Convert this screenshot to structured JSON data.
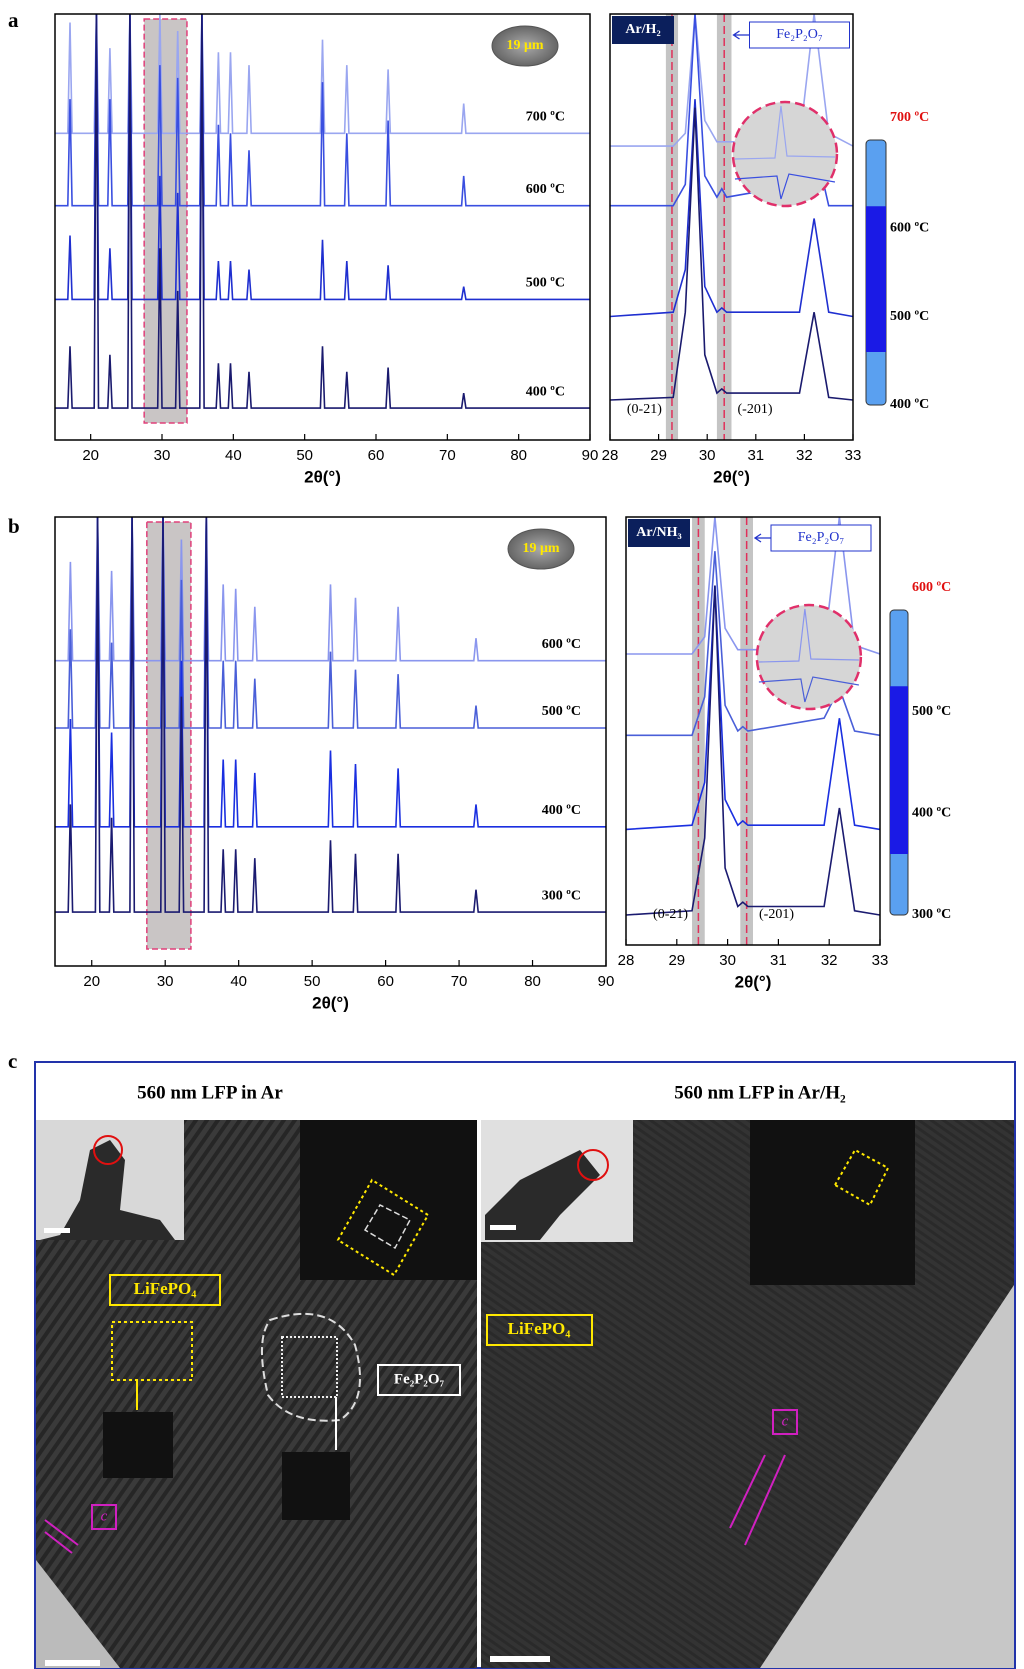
{
  "panel_labels": [
    "a",
    "b",
    "c"
  ],
  "chart_data": [
    {
      "type": "line",
      "x_label": "2θ(°)",
      "inset_label": "19 μm",
      "xlim": [
        15,
        90
      ],
      "xticks": [
        20,
        30,
        40,
        50,
        60,
        70,
        80,
        90
      ],
      "ylim": [
        0,
        100
      ],
      "shaded_range": [
        27.5,
        33.5
      ],
      "x": [
        15,
        16.8,
        17.1,
        17.4,
        20.5,
        20.8,
        21.1,
        22.4,
        22.7,
        23.0,
        25.2,
        25.5,
        25.8,
        29.4,
        29.7,
        30.0,
        31.9,
        32.2,
        32.5,
        35.3,
        35.6,
        35.9,
        37.6,
        37.9,
        38.2,
        39.3,
        39.6,
        39.9,
        41.9,
        42.2,
        42.5,
        52.2,
        52.5,
        52.8,
        55.6,
        55.9,
        56.2,
        61.4,
        61.7,
        62.0,
        72.0,
        72.3,
        72.6,
        90
      ],
      "series": [
        {
          "name": "700 ºC",
          "color": "#9aa6f0",
          "values": [
            72,
            72,
            98,
            72,
            72,
            100,
            72,
            72,
            92,
            72,
            72,
            100,
            72,
            72,
            100,
            72,
            72,
            96,
            72,
            72,
            100,
            72,
            72,
            91,
            72,
            72,
            91,
            72,
            72,
            88,
            72,
            72,
            94,
            72,
            72,
            88,
            72,
            72,
            87,
            72,
            72,
            79,
            72,
            72
          ]
        },
        {
          "name": "600 ºC",
          "color": "#3a4fe0",
          "values": [
            55,
            55,
            80,
            55,
            55,
            100,
            55,
            55,
            80,
            55,
            55,
            100,
            55,
            55,
            88,
            55,
            55,
            85,
            55,
            55,
            100,
            55,
            55,
            74,
            55,
            55,
            72,
            55,
            55,
            68,
            55,
            55,
            84,
            55,
            55,
            72,
            55,
            55,
            75,
            55,
            55,
            62,
            55,
            55
          ]
        },
        {
          "name": "500 ºC",
          "color": "#1f2fd0",
          "values": [
            33,
            33,
            48,
            33,
            33,
            100,
            33,
            33,
            45,
            33,
            33,
            100,
            33,
            33,
            62,
            33,
            33,
            58,
            33,
            33,
            100,
            33,
            33,
            42,
            33,
            33,
            42,
            33,
            33,
            40,
            33,
            33,
            47,
            33,
            33,
            42,
            33,
            33,
            41,
            33,
            33,
            36,
            33,
            33
          ]
        },
        {
          "name": "400 ºC",
          "color": "#1a1a6e",
          "values": [
            7.5,
            7.5,
            22,
            7.5,
            7.5,
            100,
            7.5,
            7.5,
            20,
            7.5,
            7.5,
            100,
            7.5,
            7.5,
            45,
            7.5,
            7.5,
            35,
            7.5,
            7.5,
            100,
            7.5,
            7.5,
            18,
            7.5,
            7.5,
            18,
            7.5,
            7.5,
            16,
            7.5,
            7.5,
            22,
            7.5,
            7.5,
            16,
            7.5,
            7.5,
            17,
            7.5,
            7.5,
            11,
            7.5,
            7.5
          ]
        }
      ]
    },
    {
      "type": "line",
      "x_label": "2θ(°)",
      "gas_label": "Ar/H₂",
      "phase_label": "Fe₂P₂O₇",
      "peak_labels": [
        "(0-21)",
        "(-201)"
      ],
      "xlim": [
        28,
        33
      ],
      "xticks": [
        28,
        29,
        30,
        31,
        32,
        33
      ],
      "ylim": [
        0,
        100
      ],
      "bands": [
        [
          29.15,
          29.4
        ],
        [
          30.2,
          30.5
        ]
      ],
      "x": [
        28,
        29.3,
        29.55,
        29.75,
        29.95,
        30.2,
        30.3,
        30.4,
        31.9,
        32.2,
        32.5,
        33
      ],
      "series": [
        {
          "name": "700 ºC",
          "color": "#9aa6f0",
          "values": [
            69,
            69,
            72,
            100,
            75,
            70,
            70,
            70,
            70,
            100,
            72,
            69
          ]
        },
        {
          "name": "600 ºC",
          "color": "#3a4fe0",
          "values": [
            55,
            55,
            60,
            100,
            62,
            57,
            59,
            57,
            60,
            70,
            55,
            55
          ]
        },
        {
          "name": "500 ºC",
          "color": "#1f2fd0",
          "values": [
            29,
            30,
            40,
            80,
            36,
            30,
            31,
            30,
            30,
            52,
            30,
            29
          ]
        },
        {
          "name": "400 ºC",
          "color": "#1a1a6e",
          "values": [
            9.4,
            10,
            30,
            78,
            20,
            11,
            12,
            11,
            11,
            30,
            10,
            9.4
          ]
        }
      ]
    },
    {
      "type": "line",
      "x_label": "2θ(°)",
      "inset_label": "19 μm",
      "xlim": [
        15,
        90
      ],
      "xticks": [
        20,
        30,
        40,
        50,
        60,
        70,
        80,
        90
      ],
      "ylim": [
        0,
        100
      ],
      "shaded_range": [
        27.5,
        33.5
      ],
      "x": [
        15,
        16.8,
        17.1,
        17.4,
        20.5,
        20.8,
        21.1,
        22.4,
        22.7,
        23.0,
        25.2,
        25.5,
        25.8,
        29.4,
        29.7,
        30.0,
        31.9,
        32.2,
        32.5,
        35.3,
        35.6,
        35.9,
        37.6,
        37.9,
        38.2,
        39.3,
        39.6,
        39.9,
        41.9,
        42.2,
        42.5,
        52.2,
        52.5,
        52.8,
        55.6,
        55.9,
        56.2,
        61.4,
        61.7,
        62.0,
        72.0,
        72.3,
        72.6,
        90
      ],
      "series": [
        {
          "name": "600 ºC",
          "color": "#8a96ee",
          "values": [
            68,
            68,
            90,
            68,
            68,
            100,
            68,
            68,
            88,
            68,
            68,
            100,
            68,
            68,
            100,
            68,
            68,
            95,
            68,
            68,
            100,
            68,
            68,
            85,
            68,
            68,
            84,
            68,
            68,
            80,
            68,
            68,
            85,
            68,
            68,
            82,
            68,
            68,
            80,
            68,
            68,
            73,
            68,
            68
          ]
        },
        {
          "name": "500 ºC",
          "color": "#4a5fd8",
          "values": [
            53,
            53,
            75,
            53,
            53,
            100,
            53,
            53,
            72,
            53,
            53,
            100,
            53,
            53,
            100,
            53,
            53,
            86,
            53,
            53,
            100,
            53,
            53,
            68,
            53,
            53,
            68,
            53,
            53,
            64,
            53,
            53,
            70,
            53,
            53,
            66,
            53,
            53,
            65,
            53,
            53,
            58,
            53,
            53
          ]
        },
        {
          "name": "400 ºC",
          "color": "#1a2fe0",
          "values": [
            31,
            31,
            55,
            31,
            31,
            100,
            31,
            31,
            52,
            31,
            31,
            100,
            31,
            31,
            100,
            31,
            31,
            68,
            31,
            31,
            100,
            31,
            31,
            46,
            31,
            31,
            46,
            31,
            31,
            43,
            31,
            31,
            48,
            31,
            31,
            45,
            31,
            31,
            44,
            31,
            31,
            36,
            31,
            31
          ]
        },
        {
          "name": "300 ºC",
          "color": "#1b1b70",
          "values": [
            12,
            12,
            36,
            12,
            12,
            100,
            12,
            12,
            33,
            12,
            12,
            100,
            12,
            12,
            100,
            12,
            12,
            60,
            12,
            12,
            100,
            12,
            12,
            26,
            12,
            12,
            26,
            12,
            12,
            24,
            12,
            12,
            28,
            12,
            12,
            25,
            12,
            12,
            25,
            12,
            12,
            17,
            12,
            12
          ]
        }
      ]
    },
    {
      "type": "line",
      "x_label": "2θ(°)",
      "gas_label": "Ar/NH₃",
      "phase_label": "Fe₂P₂O₇",
      "peak_labels": [
        "(0-21)",
        "(-201)"
      ],
      "xlim": [
        28,
        33
      ],
      "xticks": [
        28,
        29,
        30,
        31,
        32,
        33
      ],
      "ylim": [
        0,
        100
      ],
      "bands": [
        [
          29.3,
          29.55
        ],
        [
          30.25,
          30.5
        ]
      ],
      "x": [
        28,
        29.3,
        29.55,
        29.75,
        29.95,
        30.2,
        30.3,
        30.4,
        31.9,
        32.2,
        32.5,
        33
      ],
      "series": [
        {
          "name": "600 ºC",
          "color": "#8a96ee",
          "values": [
            68,
            68,
            72,
            100,
            74,
            69,
            69,
            69,
            69,
            100,
            70,
            68
          ]
        },
        {
          "name": "500 ºC",
          "color": "#4a5fd8",
          "values": [
            49,
            49,
            58,
            92,
            56,
            50,
            51,
            50,
            53,
            60,
            50,
            49
          ]
        },
        {
          "name": "400 ºC",
          "color": "#1a2fe0",
          "values": [
            27,
            28,
            38,
            84,
            34,
            28,
            29,
            28,
            28,
            53,
            28,
            27
          ]
        },
        {
          "name": "300 ºC",
          "color": "#1b1b70",
          "values": [
            7,
            8,
            25,
            84,
            18,
            9,
            10,
            9,
            9,
            32,
            8,
            7
          ]
        }
      ]
    }
  ],
  "panel_c": {
    "left": {
      "title": "560 nm LFP  in Ar",
      "phase_labels": [
        "LiFePO₄",
        "Fe₂P₂O₇"
      ],
      "axis_label": "c"
    },
    "right": {
      "title": "560 nm LFP  in Ar/H₂",
      "phase_labels": [
        "LiFePO₄"
      ],
      "axis_label": "c"
    }
  }
}
